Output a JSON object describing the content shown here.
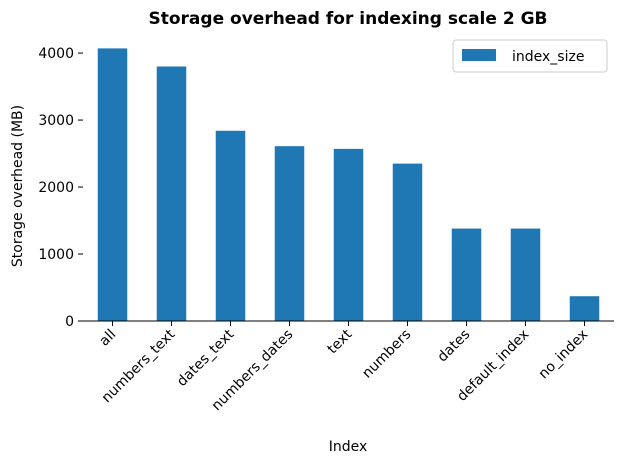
{
  "chart_data": {
    "type": "bar",
    "title": "Storage overhead for indexing scale 2 GB",
    "xlabel": "Index",
    "ylabel": "Storage overhead (MB)",
    "categories": [
      "all",
      "numbers_text",
      "dates_text",
      "numbers_dates",
      "text",
      "numbers",
      "dates",
      "default_index",
      "no_index"
    ],
    "series": [
      {
        "name": "index_size",
        "values": [
          4070,
          3800,
          2840,
          2610,
          2570,
          2350,
          1380,
          1380,
          370
        ],
        "color": "#1f77b4"
      }
    ],
    "ylim": [
      0,
      4270
    ],
    "yticks": [
      0,
      1000,
      2000,
      3000,
      4000
    ],
    "grid": false,
    "legend": "top-right"
  }
}
